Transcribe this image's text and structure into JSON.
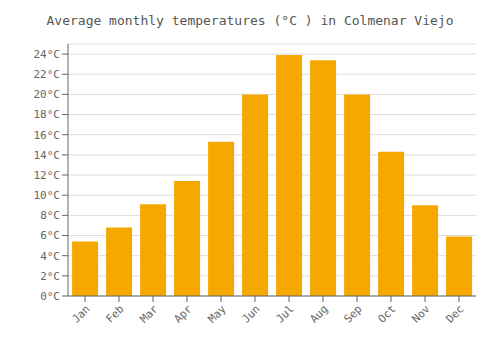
{
  "chart_data": {
    "type": "bar",
    "title": "Average monthly temperatures (°C ) in Colmenar Viejo",
    "categories": [
      "Jan",
      "Feb",
      "Mar",
      "Apr",
      "May",
      "Jun",
      "Jul",
      "Aug",
      "Sep",
      "Oct",
      "Nov",
      "Dec"
    ],
    "values": [
      5.4,
      6.8,
      9.1,
      11.4,
      15.3,
      20.0,
      23.9,
      23.4,
      20.0,
      14.3,
      9.0,
      5.9
    ],
    "color": "#F5A800",
    "ylim": [
      0,
      25
    ],
    "yticks": [
      {
        "value": 0,
        "label": "0°C"
      },
      {
        "value": 2,
        "label": "2°C"
      },
      {
        "value": 4,
        "label": "4°C"
      },
      {
        "value": 6,
        "label": "6°C"
      },
      {
        "value": 8,
        "label": "8°C"
      },
      {
        "value": 10,
        "label": "10°C"
      },
      {
        "value": 12,
        "label": "12°C"
      },
      {
        "value": 14,
        "label": "14°C"
      },
      {
        "value": 16,
        "label": "16°C"
      },
      {
        "value": 18,
        "label": "18°C"
      },
      {
        "value": 20,
        "label": "20°C"
      },
      {
        "value": 22,
        "label": "22°C"
      },
      {
        "value": 24,
        "label": "24°C"
      }
    ],
    "grid": true
  }
}
